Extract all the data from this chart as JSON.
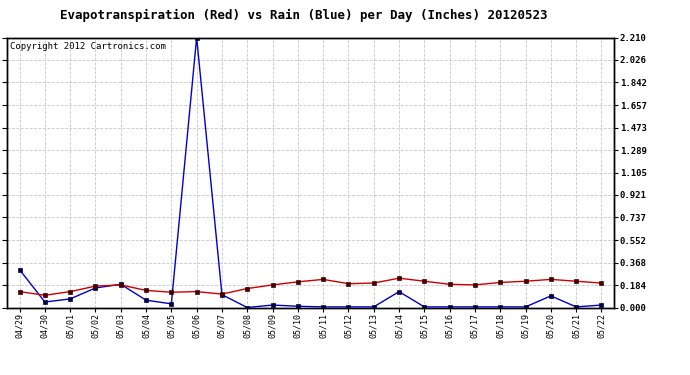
{
  "title": "Evapotranspiration (Red) vs Rain (Blue) per Day (Inches) 20120523",
  "copyright": "Copyright 2012 Cartronics.com",
  "x_labels": [
    "04/29",
    "04/30",
    "05/01",
    "05/02",
    "05/03",
    "05/04",
    "05/05",
    "05/06",
    "05/07",
    "05/08",
    "05/09",
    "05/10",
    "05/11",
    "05/12",
    "05/13",
    "05/14",
    "05/15",
    "05/16",
    "05/17",
    "05/18",
    "05/19",
    "05/20",
    "05/21",
    "05/22"
  ],
  "red_data": [
    0.13,
    0.1,
    0.13,
    0.175,
    0.185,
    0.14,
    0.125,
    0.13,
    0.11,
    0.155,
    0.185,
    0.21,
    0.23,
    0.195,
    0.2,
    0.24,
    0.215,
    0.19,
    0.185,
    0.205,
    0.215,
    0.23,
    0.215,
    0.2
  ],
  "blue_data": [
    0.31,
    0.045,
    0.07,
    0.16,
    0.19,
    0.06,
    0.03,
    2.21,
    0.105,
    0.0,
    0.02,
    0.01,
    0.005,
    0.005,
    0.005,
    0.13,
    0.005,
    0.005,
    0.005,
    0.005,
    0.005,
    0.095,
    0.005,
    0.02
  ],
  "ylim": [
    0.0,
    2.21
  ],
  "yticks": [
    0.0,
    0.184,
    0.368,
    0.552,
    0.737,
    0.921,
    1.105,
    1.289,
    1.473,
    1.657,
    1.842,
    2.026,
    2.21
  ],
  "red_color": "#cc0000",
  "blue_color": "#0000cc",
  "bg_color": "#ffffff",
  "grid_color": "#c8c8c8",
  "title_fontsize": 9,
  "copyright_fontsize": 6.5
}
